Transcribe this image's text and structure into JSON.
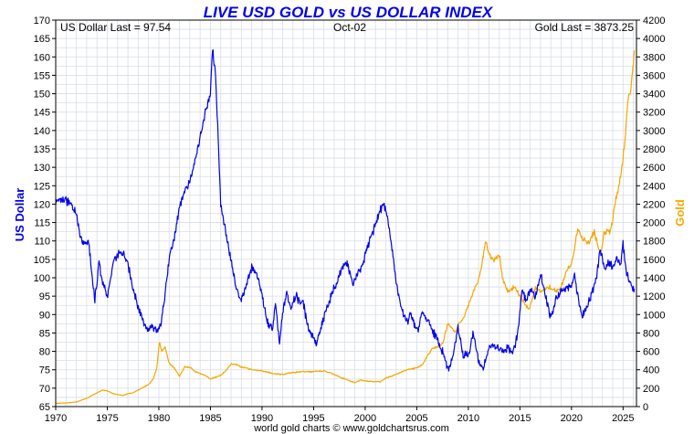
{
  "chart_data": {
    "type": "line",
    "title": "LIVE USD GOLD vs US DOLLAR INDEX",
    "info_left": "US Dollar Last = 97.54",
    "info_center": "Oct-02",
    "info_right": "Gold Last = 3873.25",
    "credit": "world gold charts © www.goldchartsrus.com",
    "xlabel": "",
    "y_left_label": "US Dollar",
    "y_right_label": "Gold",
    "xlim": [
      1970,
      2026.3
    ],
    "ylim_left": [
      65,
      170
    ],
    "ylim_right": [
      0,
      4200
    ],
    "x_ticks": [
      1970,
      1975,
      1980,
      1985,
      1990,
      1995,
      2000,
      2005,
      2010,
      2015,
      2020,
      2025
    ],
    "y_left_ticks": [
      65,
      70,
      75,
      80,
      85,
      90,
      95,
      100,
      105,
      110,
      115,
      120,
      125,
      130,
      135,
      140,
      145,
      150,
      155,
      160,
      165,
      170
    ],
    "y_right_ticks": [
      0,
      200,
      400,
      600,
      800,
      1000,
      1200,
      1400,
      1600,
      1800,
      2000,
      2200,
      2400,
      2600,
      2800,
      3000,
      3200,
      3400,
      3600,
      3800,
      4000,
      4200
    ],
    "grid": true,
    "colors": {
      "usd": "#0000ee",
      "gold": "#f5a800",
      "title": "#0000ee",
      "grid": "#d8dde8"
    },
    "series": [
      {
        "name": "US Dollar",
        "axis": "left",
        "color": "#0000ee",
        "x": [
          1970.0,
          1971.0,
          1971.5,
          1972.0,
          1972.5,
          1973.0,
          1973.2,
          1973.5,
          1973.8,
          1974.2,
          1974.6,
          1975.0,
          1975.6,
          1976.0,
          1976.5,
          1977.0,
          1977.5,
          1978.0,
          1978.5,
          1978.9,
          1979.3,
          1979.8,
          1980.2,
          1980.6,
          1981.0,
          1981.5,
          1982.0,
          1982.5,
          1983.0,
          1983.5,
          1984.0,
          1984.5,
          1985.0,
          1985.2,
          1985.5,
          1986.0,
          1986.5,
          1987.0,
          1987.5,
          1988.0,
          1988.5,
          1989.0,
          1989.5,
          1990.0,
          1990.5,
          1991.0,
          1991.3,
          1991.7,
          1992.0,
          1992.4,
          1992.8,
          1993.2,
          1993.6,
          1994.0,
          1994.5,
          1995.0,
          1995.3,
          1995.8,
          1996.3,
          1996.8,
          1997.3,
          1997.8,
          1998.3,
          1998.8,
          1999.3,
          1999.8,
          2000.3,
          2000.8,
          2001.3,
          2001.7,
          2002.0,
          2002.5,
          2003.0,
          2003.5,
          2004.0,
          2004.5,
          2005.0,
          2005.5,
          2006.0,
          2006.5,
          2007.0,
          2007.5,
          2008.0,
          2008.3,
          2008.7,
          2009.0,
          2009.5,
          2010.0,
          2010.5,
          2011.0,
          2011.4,
          2011.8,
          2012.3,
          2012.8,
          2013.3,
          2013.8,
          2014.3,
          2014.8,
          2015.2,
          2015.6,
          2016.0,
          2016.5,
          2017.0,
          2017.5,
          2018.0,
          2018.5,
          2019.0,
          2019.5,
          2020.0,
          2020.3,
          2020.7,
          2021.0,
          2021.5,
          2022.0,
          2022.4,
          2022.8,
          2023.2,
          2023.6,
          2024.0,
          2024.4,
          2024.8,
          2025.0,
          2025.3,
          2025.6,
          2025.9,
          2026.1
        ],
        "values": [
          121,
          121,
          120,
          117,
          110,
          109,
          110,
          101,
          94,
          104,
          98,
          95,
          104,
          106,
          107,
          104,
          97,
          92,
          88,
          86,
          87,
          85,
          87,
          96,
          105,
          111,
          119,
          124,
          126,
          132,
          138,
          145,
          150,
          162,
          155,
          120,
          112,
          105,
          97,
          94,
          98,
          103,
          101,
          95,
          88,
          86,
          93,
          82,
          90,
          96,
          92,
          95,
          94,
          93,
          86,
          84,
          82,
          87,
          92,
          96,
          99,
          103,
          104,
          98,
          101,
          104,
          109,
          113,
          117,
          120,
          119,
          110,
          99,
          92,
          88,
          90,
          85,
          90,
          89,
          86,
          83,
          80,
          75,
          76,
          82,
          87,
          79,
          79,
          85,
          77,
          75,
          79,
          82,
          81,
          80,
          81,
          79,
          85,
          97,
          94,
          97,
          95,
          101,
          95,
          89,
          94,
          96,
          97,
          98,
          101,
          94,
          90,
          92,
          96,
          100,
          108,
          102,
          104,
          103,
          105,
          104,
          109,
          102,
          99,
          98,
          97
        ]
      },
      {
        "name": "Gold",
        "axis": "right",
        "color": "#f5a800",
        "x": [
          1970.0,
          1971.0,
          1972.0,
          1973.0,
          1973.5,
          1974.0,
          1974.6,
          1975.0,
          1975.6,
          1976.5,
          1977.0,
          1977.5,
          1978.0,
          1978.5,
          1979.0,
          1979.5,
          1979.8,
          1980.05,
          1980.3,
          1980.6,
          1981.0,
          1981.5,
          1982.0,
          1982.5,
          1983.0,
          1983.5,
          1984.0,
          1984.5,
          1985.0,
          1985.5,
          1986.0,
          1986.5,
          1987.0,
          1987.5,
          1988.0,
          1988.5,
          1989.0,
          1990.0,
          1991.0,
          1992.0,
          1993.0,
          1993.8,
          1994.5,
          1995.5,
          1996.0,
          1996.5,
          1997.0,
          1997.5,
          1998.0,
          1999.0,
          1999.6,
          2000.0,
          2001.0,
          2001.5,
          2002.0,
          2003.0,
          2004.0,
          2005.0,
          2005.6,
          2006.0,
          2006.5,
          2007.0,
          2007.5,
          2008.0,
          2008.8,
          2009.0,
          2009.5,
          2010.0,
          2010.5,
          2011.0,
          2011.3,
          2011.7,
          2012.0,
          2012.5,
          2013.0,
          2013.3,
          2013.8,
          2014.5,
          2015.0,
          2015.9,
          2016.5,
          2017.0,
          2017.8,
          2018.5,
          2019.0,
          2019.6,
          2020.0,
          2020.3,
          2020.6,
          2020.9,
          2021.3,
          2021.8,
          2022.2,
          2022.8,
          2023.2,
          2023.8,
          2024.2,
          2024.6,
          2024.9,
          2025.2,
          2025.5,
          2025.8,
          2026.1
        ],
        "values": [
          35,
          40,
          50,
          90,
          120,
          150,
          180,
          170,
          140,
          120,
          140,
          150,
          180,
          210,
          240,
          310,
          420,
          700,
          600,
          650,
          470,
          420,
          330,
          430,
          430,
          380,
          360,
          340,
          300,
          320,
          340,
          390,
          460,
          460,
          430,
          420,
          400,
          390,
          360,
          350,
          370,
          380,
          380,
          385,
          385,
          370,
          350,
          320,
          300,
          260,
          290,
          280,
          270,
          270,
          310,
          350,
          400,
          420,
          460,
          550,
          630,
          650,
          680,
          900,
          800,
          900,
          950,
          1100,
          1250,
          1380,
          1550,
          1800,
          1650,
          1600,
          1650,
          1400,
          1250,
          1300,
          1200,
          1050,
          1300,
          1250,
          1300,
          1250,
          1300,
          1500,
          1550,
          1700,
          1950,
          1850,
          1800,
          1800,
          1900,
          1650,
          1900,
          1900,
          2200,
          2400,
          2600,
          2900,
          3350,
          3500,
          3870
        ]
      }
    ]
  }
}
